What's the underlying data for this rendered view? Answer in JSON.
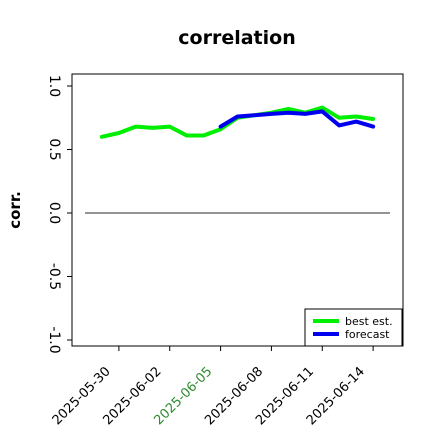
{
  "chart_data": {
    "type": "line",
    "title": "correlation",
    "xlabel": "",
    "ylabel": "corr.",
    "ylim": [
      -1.0,
      1.0
    ],
    "yticks": [
      "-1.0",
      "-0.5",
      "0.0",
      "0.5",
      "1.0"
    ],
    "xlim": [
      "2025-05-28",
      "2025-06-16"
    ],
    "xticks": [
      {
        "label": "2025-05-30",
        "date": "2025-05-30",
        "color": "#000000"
      },
      {
        "label": "2025-06-02",
        "date": "2025-06-02",
        "color": "#000000"
      },
      {
        "label": "2025-06-05",
        "date": "2025-06-05",
        "color": "#2e8b2e"
      },
      {
        "label": "2025-06-08",
        "date": "2025-06-08",
        "color": "#000000"
      },
      {
        "label": "2025-06-11",
        "date": "2025-06-11",
        "color": "#000000"
      },
      {
        "label": "2025-06-14",
        "date": "2025-06-14",
        "color": "#000000"
      }
    ],
    "reference_line": {
      "y": 0.0,
      "color": "#555555"
    },
    "legend_position": "lower-right",
    "series": [
      {
        "name": "best est.",
        "color": "#00ee00",
        "points": [
          {
            "x": "2025-05-29",
            "y": 0.6
          },
          {
            "x": "2025-05-30",
            "y": 0.63
          },
          {
            "x": "2025-05-31",
            "y": 0.68
          },
          {
            "x": "2025-06-01",
            "y": 0.67
          },
          {
            "x": "2025-06-02",
            "y": 0.68
          },
          {
            "x": "2025-06-03",
            "y": 0.61
          },
          {
            "x": "2025-06-04",
            "y": 0.61
          },
          {
            "x": "2025-06-05",
            "y": 0.66
          },
          {
            "x": "2025-06-06",
            "y": 0.75
          },
          {
            "x": "2025-06-07",
            "y": 0.77
          },
          {
            "x": "2025-06-08",
            "y": 0.79
          },
          {
            "x": "2025-06-09",
            "y": 0.82
          },
          {
            "x": "2025-06-10",
            "y": 0.79
          },
          {
            "x": "2025-06-11",
            "y": 0.83
          },
          {
            "x": "2025-06-12",
            "y": 0.75
          },
          {
            "x": "2025-06-13",
            "y": 0.76
          },
          {
            "x": "2025-06-14",
            "y": 0.74
          }
        ]
      },
      {
        "name": "forecast",
        "color": "#0000ee",
        "points": [
          {
            "x": "2025-06-05",
            "y": 0.68
          },
          {
            "x": "2025-06-06",
            "y": 0.76
          },
          {
            "x": "2025-06-07",
            "y": 0.77
          },
          {
            "x": "2025-06-08",
            "y": 0.78
          },
          {
            "x": "2025-06-09",
            "y": 0.79
          },
          {
            "x": "2025-06-10",
            "y": 0.78
          },
          {
            "x": "2025-06-11",
            "y": 0.8
          },
          {
            "x": "2025-06-12",
            "y": 0.69
          },
          {
            "x": "2025-06-13",
            "y": 0.72
          },
          {
            "x": "2025-06-14",
            "y": 0.68
          }
        ]
      }
    ]
  }
}
